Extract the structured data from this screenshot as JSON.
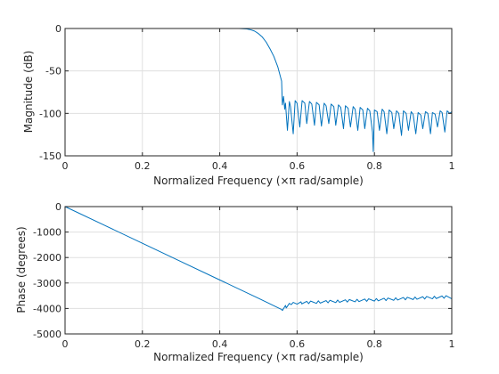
{
  "colors": {
    "line": "#0072bd",
    "axis": "#262626",
    "grid": "#dfdfdf",
    "background": "#ffffff"
  },
  "chart_data": [
    {
      "type": "line",
      "title": "",
      "xlabel": "Normalized Frequency  (×π rad/sample)",
      "ylabel": "Magnitude (dB)",
      "xlim": [
        0,
        1
      ],
      "ylim": [
        -150,
        0
      ],
      "xticks": [
        0,
        0.2,
        0.4,
        0.6,
        0.8,
        1
      ],
      "xtick_labels": [
        "0",
        "0.2",
        "0.4",
        "0.6",
        "0.8",
        "1"
      ],
      "yticks": [
        -150,
        -100,
        -50,
        0
      ],
      "ytick_labels": [
        "-150",
        "-100",
        "-50",
        "0"
      ],
      "grid": true,
      "series": [
        {
          "x": [
            0,
            0.1,
            0.2,
            0.3,
            0.4,
            0.45,
            0.47,
            0.48,
            0.49,
            0.5,
            0.51,
            0.52,
            0.53,
            0.54,
            0.55,
            0.56,
            0.562,
            0.565,
            0.568,
            0.57,
            0.575,
            0.58,
            0.583,
            0.59,
            0.595,
            0.6,
            0.607,
            0.613,
            0.62,
            0.625,
            0.632,
            0.638,
            0.645,
            0.65,
            0.657,
            0.663,
            0.67,
            0.675,
            0.682,
            0.688,
            0.695,
            0.7,
            0.707,
            0.713,
            0.72,
            0.725,
            0.732,
            0.738,
            0.745,
            0.75,
            0.757,
            0.763,
            0.77,
            0.775,
            0.782,
            0.788,
            0.795,
            0.797,
            0.8,
            0.807,
            0.813,
            0.82,
            0.825,
            0.832,
            0.838,
            0.845,
            0.85,
            0.857,
            0.863,
            0.87,
            0.875,
            0.882,
            0.888,
            0.895,
            0.9,
            0.907,
            0.913,
            0.92,
            0.925,
            0.932,
            0.938,
            0.945,
            0.95,
            0.957,
            0.963,
            0.97,
            0.975,
            0.982,
            0.988,
            0.995,
            1
          ],
          "y": [
            0,
            0,
            0,
            0,
            0,
            0,
            -0.5,
            -1.5,
            -3,
            -6,
            -10,
            -16,
            -24,
            -33,
            -45,
            -62,
            -90,
            -80,
            -95,
            -88,
            -120,
            -86,
            -92,
            -124,
            -85,
            -88,
            -116,
            -85,
            -88,
            -112,
            -86,
            -89,
            -114,
            -87,
            -90,
            -115,
            -88,
            -91,
            -112,
            -89,
            -92,
            -114,
            -90,
            -93,
            -118,
            -91,
            -94,
            -116,
            -92,
            -95,
            -120,
            -93,
            -96,
            -118,
            -94,
            -97,
            -122,
            -145,
            -96,
            -98,
            -120,
            -95,
            -98,
            -124,
            -96,
            -99,
            -118,
            -97,
            -100,
            -126,
            -97,
            -100,
            -120,
            -98,
            -101,
            -124,
            -99,
            -102,
            -118,
            -98,
            -100,
            -124,
            -99,
            -101,
            -116,
            -97,
            -99,
            -122,
            -97,
            -100,
            -98
          ]
        }
      ]
    },
    {
      "type": "line",
      "title": "",
      "xlabel": "Normalized Frequency  (×π rad/sample)",
      "ylabel": "Phase (degrees)",
      "xlim": [
        0,
        1
      ],
      "ylim": [
        -5000,
        0
      ],
      "xticks": [
        0,
        0.2,
        0.4,
        0.6,
        0.8,
        1
      ],
      "xtick_labels": [
        "0",
        "0.2",
        "0.4",
        "0.6",
        "0.8",
        "1"
      ],
      "yticks": [
        -5000,
        -4000,
        -3000,
        -2000,
        -1000,
        0
      ],
      "ytick_labels": [
        "-5000",
        "-4000",
        "-3000",
        "-2000",
        "-1000",
        "0"
      ],
      "grid": true,
      "series": [
        {
          "x": [
            0,
            0.1,
            0.2,
            0.3,
            0.4,
            0.5,
            0.56,
            0.562,
            0.57,
            0.572,
            0.58,
            0.585,
            0.59,
            0.6,
            0.61,
            0.612,
            0.625,
            0.63,
            0.635,
            0.65,
            0.655,
            0.66,
            0.675,
            0.68,
            0.685,
            0.7,
            0.705,
            0.71,
            0.725,
            0.73,
            0.735,
            0.75,
            0.755,
            0.76,
            0.775,
            0.78,
            0.785,
            0.8,
            0.805,
            0.81,
            0.825,
            0.83,
            0.835,
            0.85,
            0.855,
            0.86,
            0.875,
            0.88,
            0.885,
            0.9,
            0.905,
            0.91,
            0.925,
            0.93,
            0.935,
            0.95,
            0.955,
            0.96,
            0.975,
            0.98,
            0.985,
            1
          ],
          "y": [
            0,
            -720,
            -1440,
            -2160,
            -2880,
            -3600,
            -4040,
            -4080,
            -3880,
            -3980,
            -3800,
            -3850,
            -3760,
            -3830,
            -3740,
            -3820,
            -3720,
            -3810,
            -3710,
            -3800,
            -3700,
            -3790,
            -3690,
            -3780,
            -3680,
            -3770,
            -3670,
            -3760,
            -3660,
            -3750,
            -3650,
            -3740,
            -3640,
            -3730,
            -3630,
            -3720,
            -3620,
            -3710,
            -3610,
            -3700,
            -3600,
            -3690,
            -3590,
            -3680,
            -3580,
            -3670,
            -3570,
            -3660,
            -3560,
            -3650,
            -3550,
            -3640,
            -3540,
            -3630,
            -3530,
            -3620,
            -3520,
            -3610,
            -3510,
            -3600,
            -3500,
            -3620
          ]
        }
      ]
    }
  ]
}
